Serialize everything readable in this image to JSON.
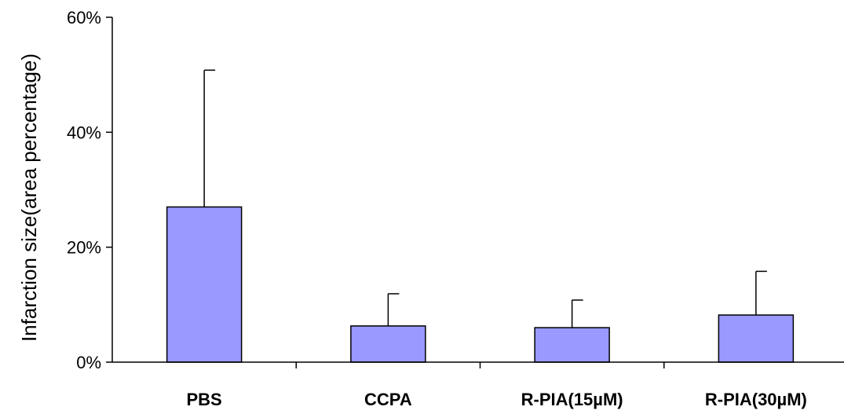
{
  "chart_data": {
    "type": "bar",
    "title": "",
    "xlabel": "",
    "ylabel": "Infarction size(area percentage)",
    "categories": [
      "PBS",
      "CCPA",
      "R-PIA(15µM)",
      "R-PIA(30µM)"
    ],
    "values": [
      27,
      6.3,
      6,
      8.2
    ],
    "error_upper": [
      23.8,
      5.6,
      4.8,
      7.6
    ],
    "ylim": [
      0,
      60
    ],
    "yticks": [
      0,
      20,
      40,
      60
    ],
    "ytick_labels": [
      "0%",
      "20%",
      "40%",
      "60%"
    ],
    "grid": false,
    "legend": "none",
    "bar_color": "#9999ff",
    "bar_edge_color": "#000000"
  }
}
